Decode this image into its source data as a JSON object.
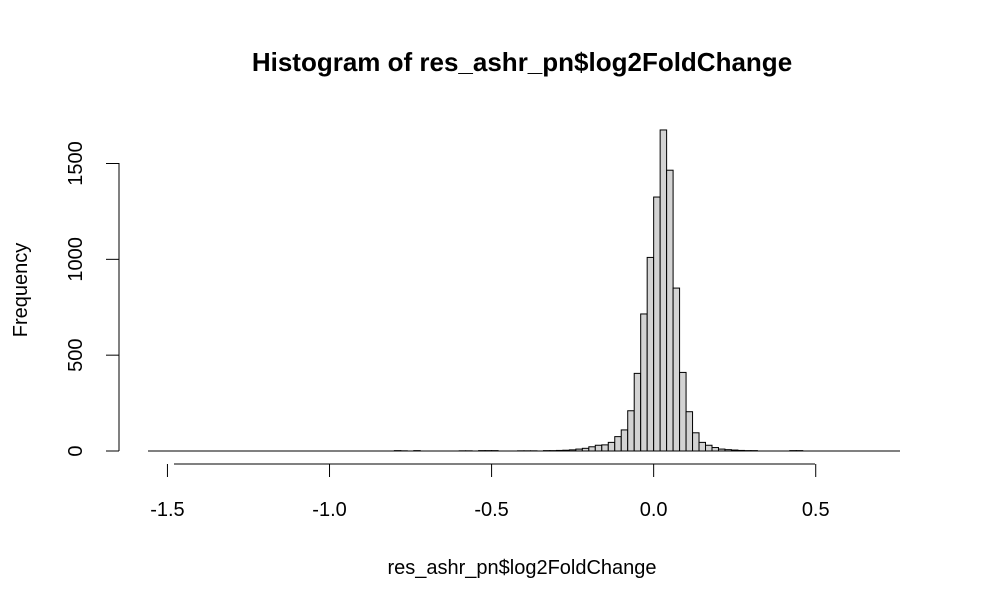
{
  "chart_data": {
    "type": "bar",
    "title": "Histogram of res_ashr_pn$log2FoldChange",
    "xlabel": "res_ashr_pn$log2FoldChange",
    "ylabel": "Frequency",
    "xlim": [
      -1.56,
      0.76
    ],
    "ylim": [
      0,
      1680
    ],
    "x_ticks": [
      -1.5,
      -1.0,
      -0.5,
      0.0,
      0.5
    ],
    "x_tick_labels": [
      "-1.5",
      "-1.0",
      "-0.5",
      "0.0",
      "0.5"
    ],
    "y_ticks": [
      0,
      500,
      1000,
      1500
    ],
    "y_tick_labels": [
      "0",
      "500",
      "1000",
      "1500"
    ],
    "bin_width": 0.02,
    "bins": [
      {
        "x0": -0.8,
        "x1": -0.78,
        "count": 2
      },
      {
        "x0": -0.78,
        "x1": -0.76,
        "count": 1
      },
      {
        "x0": -0.74,
        "x1": -0.72,
        "count": 2
      },
      {
        "x0": -0.6,
        "x1": -0.58,
        "count": 1
      },
      {
        "x0": -0.58,
        "x1": -0.56,
        "count": 1
      },
      {
        "x0": -0.54,
        "x1": -0.52,
        "count": 2
      },
      {
        "x0": -0.52,
        "x1": -0.5,
        "count": 2
      },
      {
        "x0": -0.5,
        "x1": -0.48,
        "count": 2
      },
      {
        "x0": -0.42,
        "x1": -0.4,
        "count": 1
      },
      {
        "x0": -0.4,
        "x1": -0.38,
        "count": 1
      },
      {
        "x0": -0.38,
        "x1": -0.36,
        "count": 1
      },
      {
        "x0": -0.34,
        "x1": -0.32,
        "count": 2
      },
      {
        "x0": -0.32,
        "x1": -0.3,
        "count": 2
      },
      {
        "x0": -0.3,
        "x1": -0.28,
        "count": 3
      },
      {
        "x0": -0.28,
        "x1": -0.26,
        "count": 4
      },
      {
        "x0": -0.26,
        "x1": -0.24,
        "count": 6
      },
      {
        "x0": -0.24,
        "x1": -0.22,
        "count": 10
      },
      {
        "x0": -0.22,
        "x1": -0.2,
        "count": 14
      },
      {
        "x0": -0.2,
        "x1": -0.18,
        "count": 22
      },
      {
        "x0": -0.18,
        "x1": -0.16,
        "count": 30
      },
      {
        "x0": -0.16,
        "x1": -0.14,
        "count": 32
      },
      {
        "x0": -0.14,
        "x1": -0.12,
        "count": 45
      },
      {
        "x0": -0.12,
        "x1": -0.1,
        "count": 75
      },
      {
        "x0": -0.1,
        "x1": -0.08,
        "count": 110
      },
      {
        "x0": -0.08,
        "x1": -0.06,
        "count": 210
      },
      {
        "x0": -0.06,
        "x1": -0.04,
        "count": 405
      },
      {
        "x0": -0.04,
        "x1": -0.02,
        "count": 715
      },
      {
        "x0": -0.02,
        "x1": 0.0,
        "count": 1010
      },
      {
        "x0": 0.0,
        "x1": 0.02,
        "count": 1325
      },
      {
        "x0": 0.02,
        "x1": 0.04,
        "count": 1675
      },
      {
        "x0": 0.04,
        "x1": 0.06,
        "count": 1465
      },
      {
        "x0": 0.06,
        "x1": 0.08,
        "count": 850
      },
      {
        "x0": 0.08,
        "x1": 0.1,
        "count": 410
      },
      {
        "x0": 0.1,
        "x1": 0.12,
        "count": 205
      },
      {
        "x0": 0.12,
        "x1": 0.14,
        "count": 95
      },
      {
        "x0": 0.14,
        "x1": 0.16,
        "count": 45
      },
      {
        "x0": 0.16,
        "x1": 0.18,
        "count": 30
      },
      {
        "x0": 0.18,
        "x1": 0.2,
        "count": 18
      },
      {
        "x0": 0.2,
        "x1": 0.22,
        "count": 10
      },
      {
        "x0": 0.22,
        "x1": 0.24,
        "count": 7
      },
      {
        "x0": 0.24,
        "x1": 0.26,
        "count": 5
      },
      {
        "x0": 0.26,
        "x1": 0.28,
        "count": 3
      },
      {
        "x0": 0.28,
        "x1": 0.3,
        "count": 2
      },
      {
        "x0": 0.3,
        "x1": 0.32,
        "count": 2
      },
      {
        "x0": 0.42,
        "x1": 0.44,
        "count": 2
      },
      {
        "x0": 0.44,
        "x1": 0.46,
        "count": 2
      }
    ],
    "bar_fill": "#d3d3d3",
    "bar_stroke": "#000000",
    "grid": false,
    "legend": "none"
  }
}
